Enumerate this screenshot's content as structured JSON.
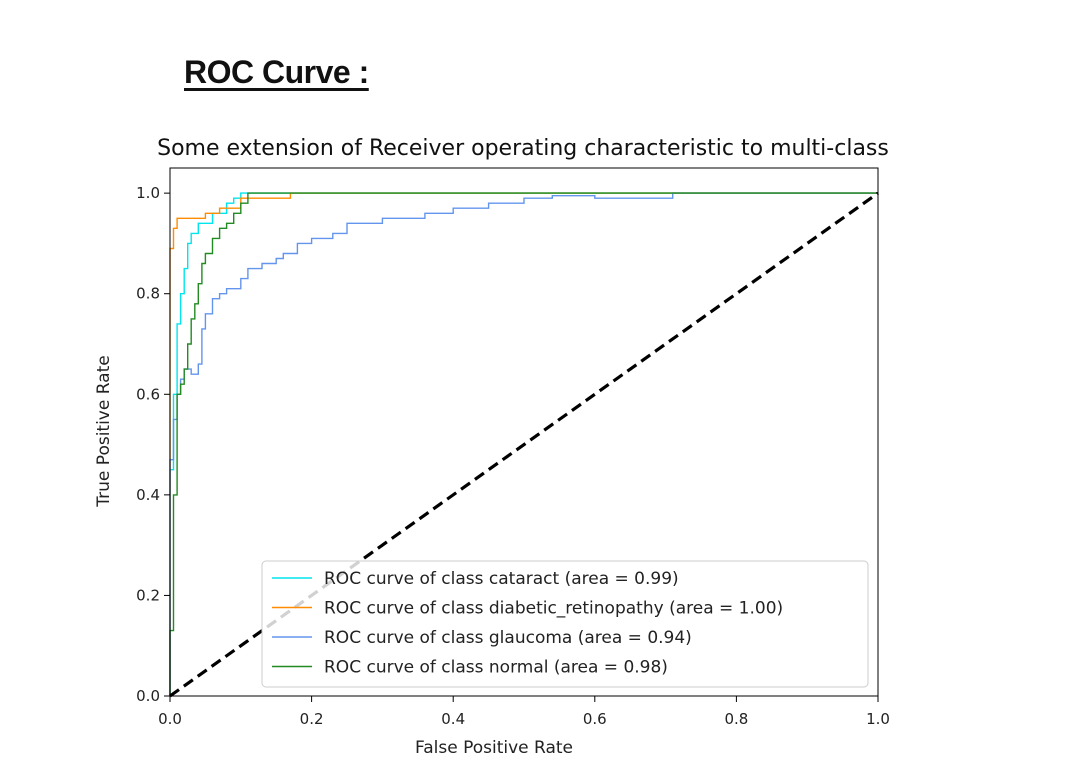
{
  "heading": "ROC Curve :",
  "chart_data": {
    "type": "line",
    "title": "Some extension of Receiver operating characteristic to multi-class",
    "xlabel": "False Positive Rate",
    "ylabel": "True Positive Rate",
    "xlim": [
      0.0,
      1.0
    ],
    "ylim": [
      0.0,
      1.05
    ],
    "xticks": [
      "0.0",
      "0.2",
      "0.4",
      "0.6",
      "0.8",
      "1.0"
    ],
    "yticks": [
      "0.0",
      "0.2",
      "0.4",
      "0.6",
      "0.8",
      "1.0"
    ],
    "grid": false,
    "legend_position": "lower right",
    "series": [
      {
        "name": "ROC curve of class cataract (area = 0.99)",
        "color": "#00e5ee",
        "x": [
          0.0,
          0.0,
          0.005,
          0.005,
          0.01,
          0.01,
          0.015,
          0.015,
          0.02,
          0.02,
          0.025,
          0.025,
          0.03,
          0.03,
          0.04,
          0.04,
          0.06,
          0.06,
          0.08,
          0.08,
          0.09,
          0.09,
          0.1,
          0.1,
          1.0
        ],
        "y": [
          0.0,
          0.45,
          0.45,
          0.6,
          0.6,
          0.74,
          0.74,
          0.8,
          0.8,
          0.85,
          0.85,
          0.9,
          0.9,
          0.92,
          0.92,
          0.94,
          0.94,
          0.96,
          0.96,
          0.98,
          0.98,
          0.99,
          0.99,
          1.0,
          1.0
        ]
      },
      {
        "name": "ROC curve of class diabetic_retinopathy (area = 1.00)",
        "color": "#ff8c00",
        "x": [
          0.0,
          0.0,
          0.005,
          0.005,
          0.01,
          0.01,
          0.05,
          0.05,
          0.07,
          0.07,
          0.1,
          0.1,
          0.17,
          0.17,
          1.0
        ],
        "y": [
          0.0,
          0.89,
          0.89,
          0.93,
          0.93,
          0.95,
          0.95,
          0.96,
          0.96,
          0.97,
          0.97,
          0.99,
          0.99,
          1.0,
          1.0
        ]
      },
      {
        "name": "ROC curve of class glaucoma (area = 0.94)",
        "color": "#6495ed",
        "x": [
          0.0,
          0.0,
          0.005,
          0.005,
          0.01,
          0.01,
          0.015,
          0.015,
          0.02,
          0.02,
          0.03,
          0.03,
          0.04,
          0.04,
          0.045,
          0.045,
          0.05,
          0.05,
          0.06,
          0.06,
          0.07,
          0.07,
          0.08,
          0.08,
          0.1,
          0.1,
          0.11,
          0.11,
          0.13,
          0.13,
          0.15,
          0.15,
          0.16,
          0.16,
          0.18,
          0.18,
          0.2,
          0.2,
          0.23,
          0.23,
          0.25,
          0.25,
          0.3,
          0.3,
          0.36,
          0.36,
          0.4,
          0.4,
          0.45,
          0.45,
          0.5,
          0.5,
          0.54,
          0.54,
          0.6,
          0.6,
          0.71,
          0.71,
          1.0
        ],
        "y": [
          0.0,
          0.47,
          0.47,
          0.55,
          0.55,
          0.6,
          0.6,
          0.63,
          0.63,
          0.65,
          0.65,
          0.64,
          0.64,
          0.66,
          0.66,
          0.73,
          0.73,
          0.76,
          0.76,
          0.79,
          0.79,
          0.8,
          0.8,
          0.81,
          0.81,
          0.83,
          0.83,
          0.85,
          0.85,
          0.86,
          0.86,
          0.87,
          0.87,
          0.88,
          0.88,
          0.9,
          0.9,
          0.91,
          0.91,
          0.92,
          0.92,
          0.94,
          0.94,
          0.95,
          0.95,
          0.96,
          0.96,
          0.97,
          0.97,
          0.98,
          0.98,
          0.99,
          0.99,
          0.995,
          0.995,
          0.99,
          0.99,
          1.0,
          1.0
        ]
      },
      {
        "name": "ROC curve of class normal (area = 0.98)",
        "color": "#228b22",
        "x": [
          0.0,
          0.0,
          0.005,
          0.005,
          0.01,
          0.01,
          0.015,
          0.015,
          0.02,
          0.02,
          0.025,
          0.025,
          0.03,
          0.03,
          0.035,
          0.035,
          0.04,
          0.04,
          0.045,
          0.045,
          0.05,
          0.05,
          0.06,
          0.06,
          0.07,
          0.07,
          0.08,
          0.08,
          0.09,
          0.09,
          0.1,
          0.1,
          0.11,
          0.11,
          1.0
        ],
        "y": [
          0.0,
          0.13,
          0.13,
          0.4,
          0.4,
          0.6,
          0.6,
          0.62,
          0.62,
          0.65,
          0.65,
          0.7,
          0.7,
          0.75,
          0.75,
          0.78,
          0.78,
          0.82,
          0.82,
          0.86,
          0.86,
          0.88,
          0.88,
          0.91,
          0.91,
          0.93,
          0.93,
          0.94,
          0.94,
          0.96,
          0.96,
          0.98,
          0.98,
          1.0,
          1.0
        ]
      }
    ],
    "diagonal": {
      "x": [
        0.0,
        1.0
      ],
      "y": [
        0.0,
        1.0
      ],
      "color": "#000000",
      "style": "dashed"
    }
  }
}
